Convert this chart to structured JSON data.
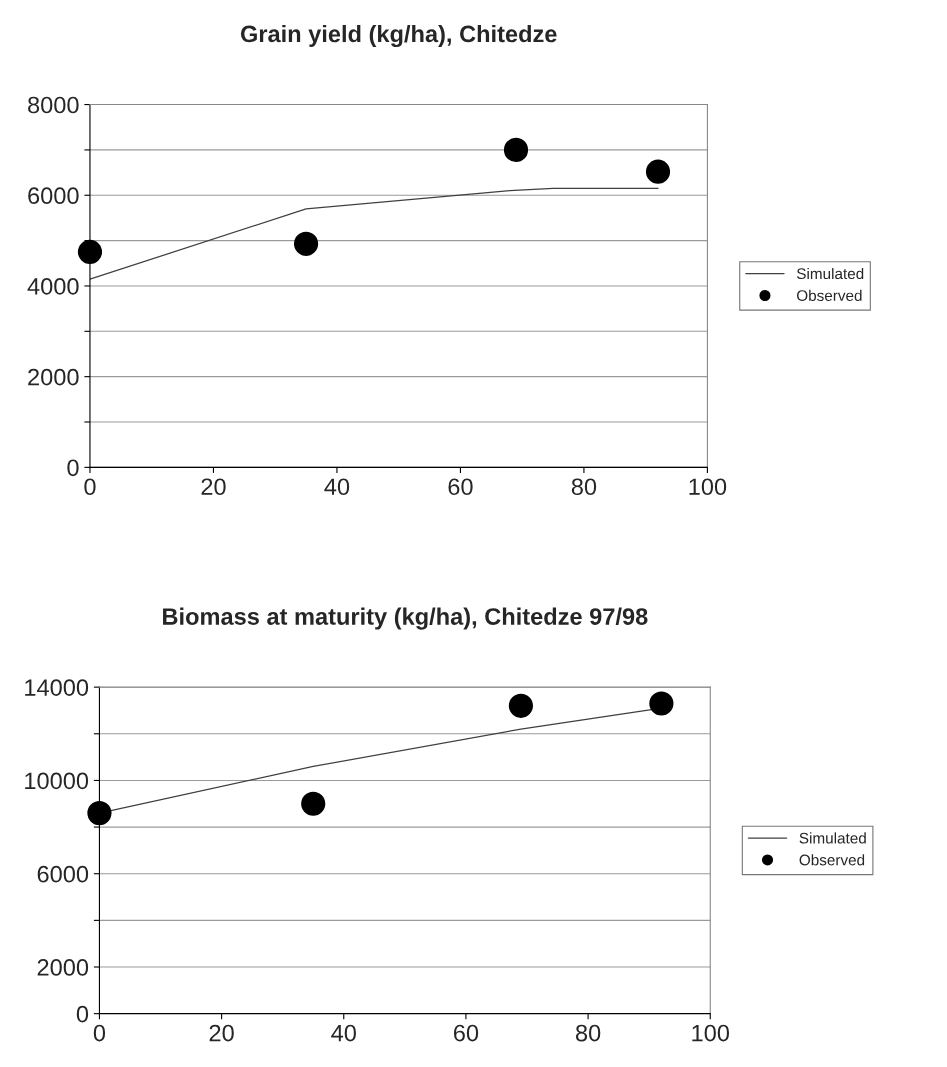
{
  "chart_data": [
    {
      "type": "line",
      "title": "Grain yield (kg/ha), Chitedze",
      "xlim": [
        0,
        100
      ],
      "xticks": [
        0,
        20,
        40,
        60,
        80,
        100
      ],
      "ylim": [
        0,
        8000
      ],
      "yticks": [
        0,
        {
          "value": 1000,
          "label": null
        },
        2000,
        {
          "value": 3000,
          "label": null
        },
        4000,
        {
          "value": 5000,
          "label": null
        },
        6000,
        {
          "value": 7000,
          "label": null
        },
        8000
      ],
      "grid": "y",
      "legend": "right",
      "series": [
        {
          "name": "Simulated",
          "color": "#404040",
          "marker": "none",
          "x": [
            0,
            35,
            68,
            75,
            92
          ],
          "values": [
            4150,
            5700,
            6100,
            6150,
            6150
          ]
        },
        {
          "name": "Observed",
          "type": "scatter",
          "color": "#000000",
          "marker": "circle",
          "x": [
            0,
            35,
            69,
            92
          ],
          "values": [
            4750,
            4930,
            7000,
            6520
          ]
        }
      ]
    },
    {
      "type": "line",
      "title": "Biomass at maturity (kg/ha), Chitedze 97/98",
      "xlim": [
        0,
        100
      ],
      "xticks": [
        0,
        20,
        40,
        60,
        80,
        100
      ],
      "ylim": [
        0,
        14000
      ],
      "yticks": [
        0,
        2000,
        {
          "value": 4000,
          "label": null
        },
        6000,
        {
          "value": 8000,
          "label": null
        },
        10000,
        {
          "value": 12000,
          "label": null
        },
        14000
      ],
      "grid": "y",
      "legend": "right",
      "series": [
        {
          "name": "Simulated",
          "color": "#404040",
          "marker": "none",
          "x": [
            0,
            35,
            69,
            92
          ],
          "values": [
            8600,
            10600,
            12200,
            13100
          ]
        },
        {
          "name": "Observed",
          "type": "scatter",
          "color": "#000000",
          "marker": "circle",
          "x": [
            0,
            35,
            69,
            92
          ],
          "values": [
            8600,
            9000,
            13200,
            13300
          ]
        }
      ]
    }
  ]
}
